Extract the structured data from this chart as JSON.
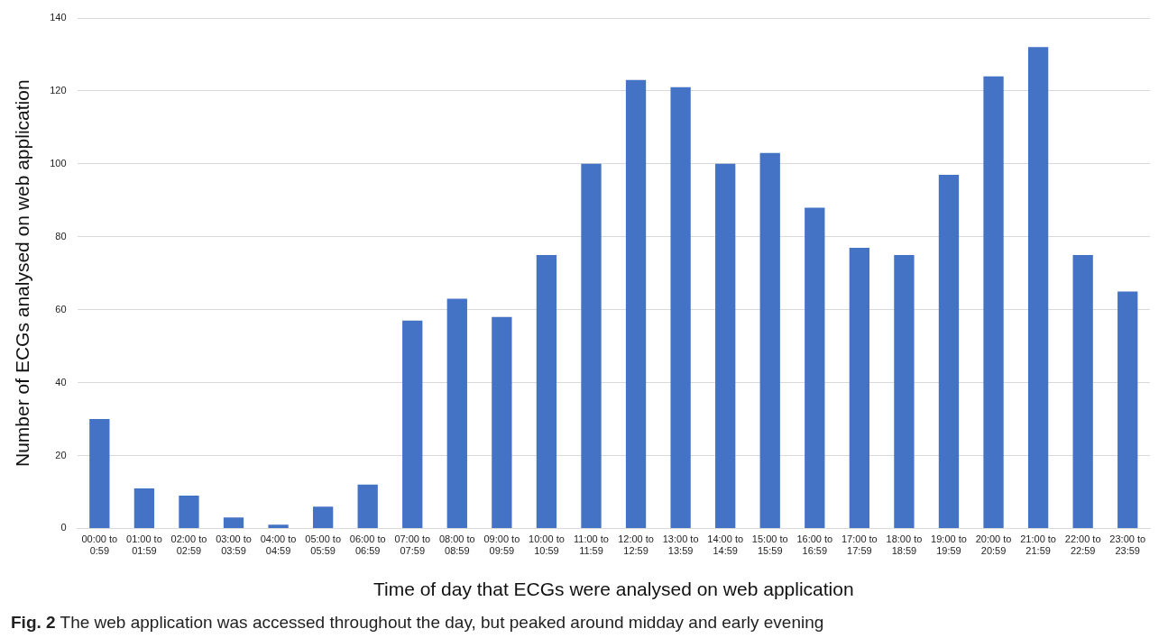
{
  "chart_data": {
    "type": "bar",
    "xlabel": "Time of day that ECGs were analysed on web application",
    "ylabel": "Number of ECGs analysed on web application",
    "categories": [
      "00:00 to 0:59",
      "01:00 to 01:59",
      "02:00 to 02:59",
      "03:00 to 03:59",
      "04:00 to 04:59",
      "05:00 to 05:59",
      "06:00 to 06:59",
      "07:00 to 07:59",
      "08:00 to 08:59",
      "09:00 to 09:59",
      "10:00 to 10:59",
      "11:00 to 11:59",
      "12:00 to 12:59",
      "13:00 to 13:59",
      "14:00 to 14:59",
      "15:00 to 15:59",
      "16:00 to 16:59",
      "17:00 to 17:59",
      "18:00 to 18:59",
      "19:00 to 19:59",
      "20:00 to 20:59",
      "21:00 to 21:59",
      "22:00 to 22:59",
      "23:00 to 23:59"
    ],
    "values": [
      30,
      11,
      9,
      3,
      1,
      6,
      12,
      57,
      63,
      58,
      75,
      100,
      123,
      121,
      100,
      103,
      88,
      77,
      75,
      97,
      124,
      132,
      75,
      65
    ],
    "color": "#4472c4",
    "ylim": [
      0,
      140
    ],
    "yticks": [
      0,
      20,
      40,
      60,
      80,
      100,
      120,
      140
    ],
    "grid": "y",
    "annotations": [
      "Fig. 2 The web application was accessed throughout the day, but peaked around midday and early evening"
    ]
  }
}
